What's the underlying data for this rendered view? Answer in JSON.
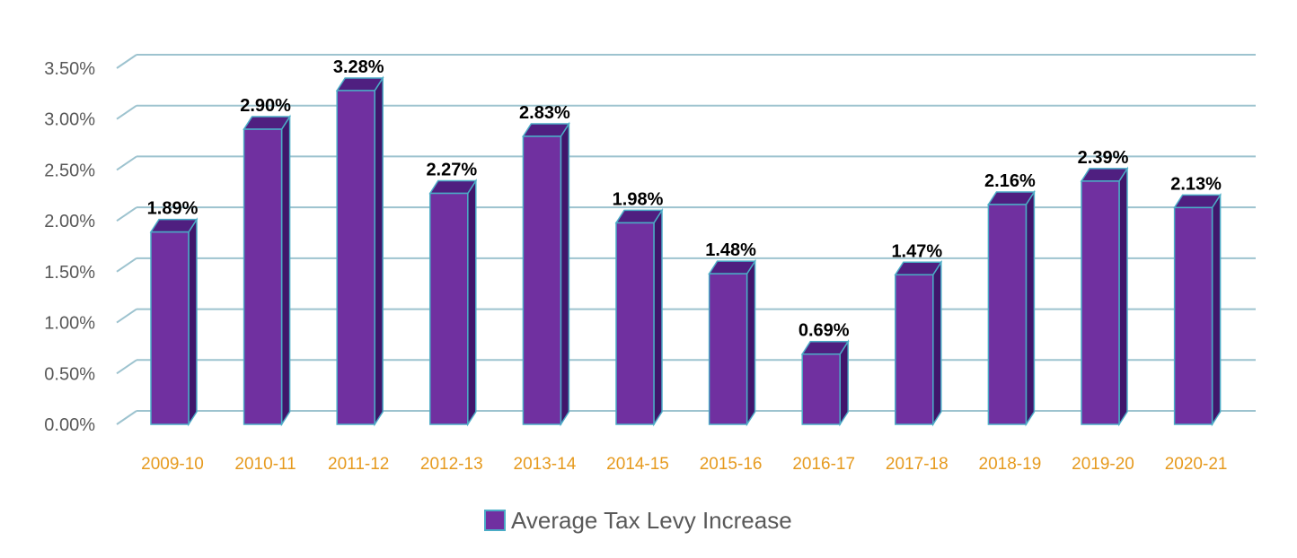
{
  "chart_data": {
    "type": "bar",
    "title": "",
    "xlabel": "",
    "ylabel": "",
    "categories": [
      "2009-10",
      "2010-11",
      "2011-12",
      "2012-13",
      "2013-14",
      "2014-15",
      "2015-16",
      "2016-17",
      "2017-18",
      "2018-19",
      "2019-20",
      "2020-21"
    ],
    "series": [
      {
        "name": "Average Tax Levy Increase",
        "values": [
          1.89,
          2.9,
          3.28,
          2.27,
          2.83,
          1.98,
          1.48,
          0.69,
          1.47,
          2.16,
          2.39,
          2.13
        ],
        "labels": [
          "1.89%",
          "2.90%",
          "3.28%",
          "2.27%",
          "2.83%",
          "1.98%",
          "1.48%",
          "0.69%",
          "1.47%",
          "2.16%",
          "2.39%",
          "2.13%"
        ]
      }
    ],
    "ylim": [
      0,
      3.5
    ],
    "yticks": [
      0,
      0.5,
      1.0,
      1.5,
      2.0,
      2.5,
      3.0,
      3.5
    ],
    "ytick_labels": [
      "0.00%",
      "0.50%",
      "1.00%",
      "1.50%",
      "2.00%",
      "2.50%",
      "3.00%",
      "3.50%"
    ],
    "grid": true,
    "legend_position": "bottom",
    "three_d": true
  },
  "colors": {
    "bar_front": "#7030A0",
    "bar_side": "#40166B",
    "bar_top": "#4F1F80",
    "bar_edge": "#4BACC6",
    "gridline": "#9DC3CF",
    "xtick": "#E69A1E",
    "ytick": "#595959",
    "legend_text": "#595959"
  }
}
